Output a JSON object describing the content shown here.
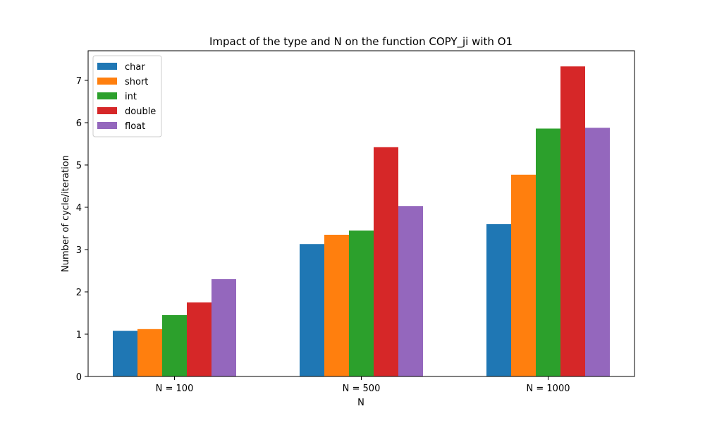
{
  "chart_data": {
    "type": "bar",
    "title": "Impact of the type and N on the function COPY_ji with O1",
    "xlabel": "N",
    "ylabel": "Number of cycle/iteration",
    "categories": [
      "N = 100",
      "N = 500",
      "N = 1000"
    ],
    "series": [
      {
        "name": "char",
        "color": "#1f77b4",
        "values": [
          1.08,
          3.13,
          3.6
        ]
      },
      {
        "name": "short",
        "color": "#ff7f0e",
        "values": [
          1.12,
          3.35,
          4.77
        ]
      },
      {
        "name": "int",
        "color": "#2ca02c",
        "values": [
          1.45,
          3.45,
          5.86
        ]
      },
      {
        "name": "double",
        "color": "#d62728",
        "values": [
          1.75,
          5.42,
          7.33
        ]
      },
      {
        "name": "float",
        "color": "#9467bd",
        "values": [
          2.3,
          4.03,
          5.88
        ]
      }
    ],
    "ylim": [
      0,
      7.7
    ],
    "yticks": [
      0,
      1,
      2,
      3,
      4,
      5,
      6,
      7
    ],
    "grid": false,
    "legend_position": "top-left"
  }
}
